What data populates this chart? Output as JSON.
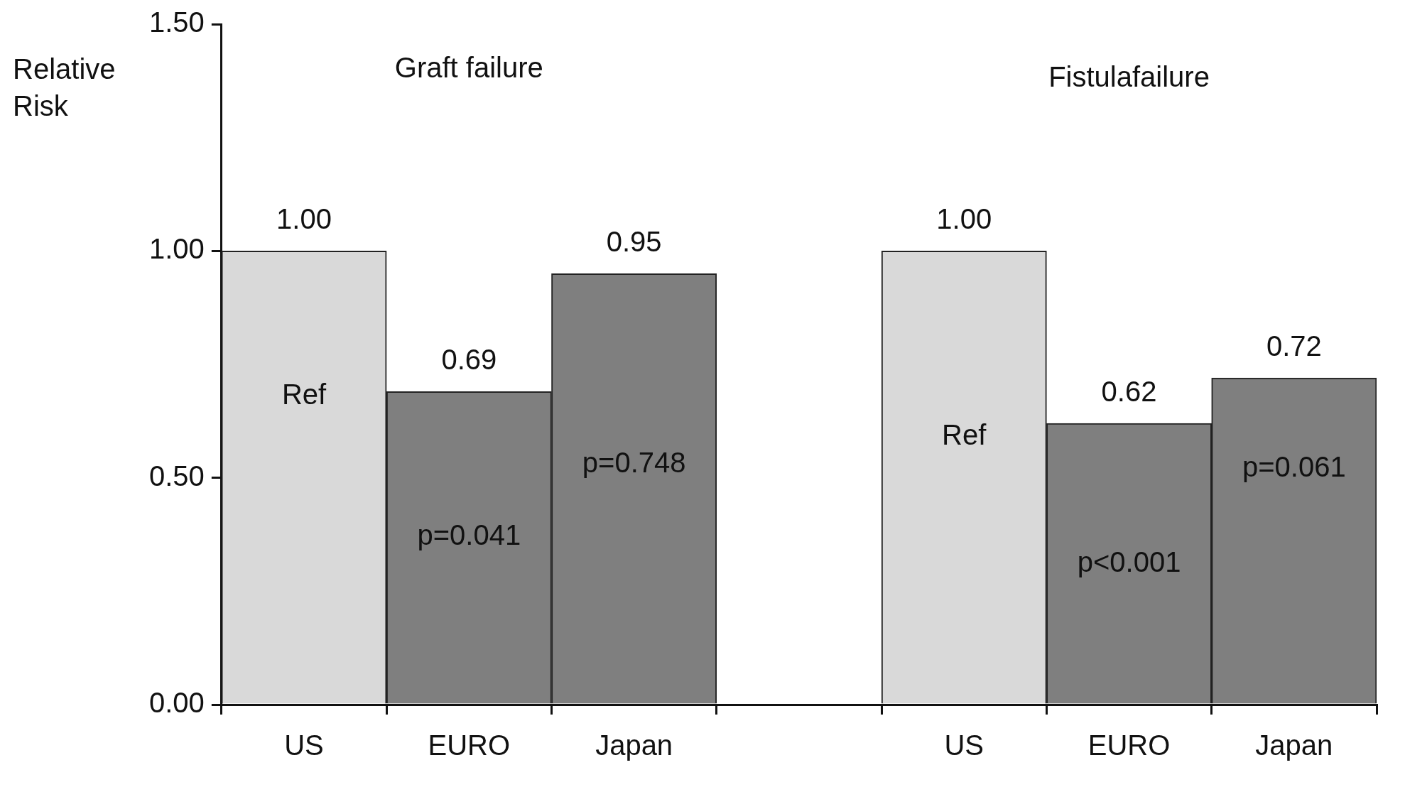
{
  "chart_data": {
    "type": "bar",
    "ylabel": "Relative\nRisk",
    "categories": [
      "US",
      "EURO",
      "Japan",
      null,
      "US",
      "EURO",
      "Japan"
    ],
    "values": [
      1.0,
      0.69,
      0.95,
      null,
      1.0,
      0.62,
      0.72
    ],
    "colors": [
      "#d9d9d9",
      "#7f7f7f",
      "#7f7f7f",
      null,
      "#d9d9d9",
      "#7f7f7f",
      "#7f7f7f"
    ],
    "value_labels": [
      "1.00",
      "0.69",
      "0.95",
      null,
      "1.00",
      "0.62",
      "0.72"
    ],
    "ylim": [
      0,
      1.5
    ],
    "yticks": [
      {
        "value": 0,
        "label": "0.00"
      },
      {
        "value": 0.5,
        "label": "0.50"
      },
      {
        "value": 1,
        "label": "1.00"
      },
      {
        "value": 1.5,
        "label": "1.50"
      }
    ],
    "annotations": [
      "Graft failure",
      "Fistulafailure",
      "Ref",
      "p=0.041",
      "p=0.748",
      "Ref",
      "p<0.001",
      "p=0.061"
    ]
  }
}
